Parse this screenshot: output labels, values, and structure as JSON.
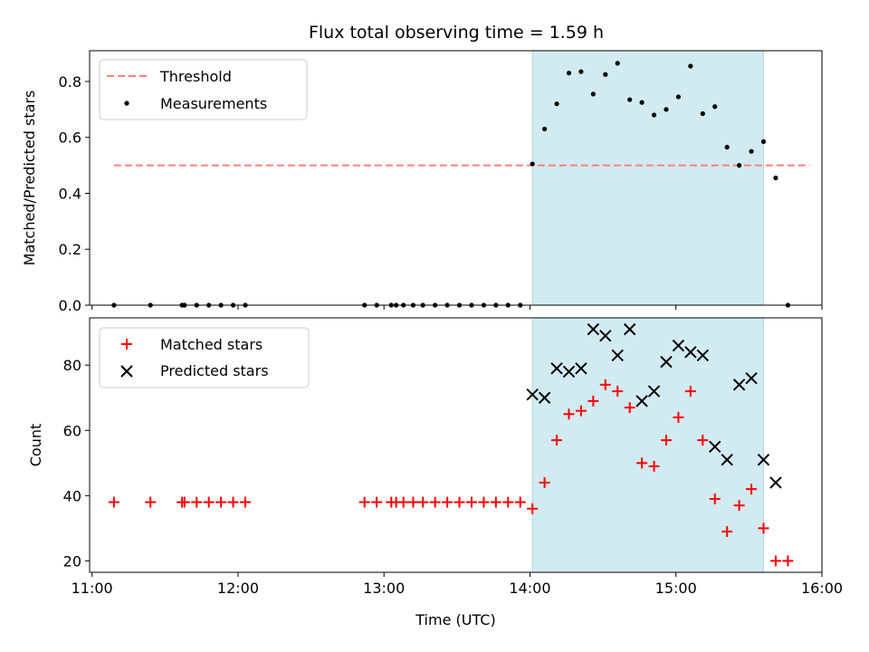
{
  "chart_data": [
    {
      "id": "ratio",
      "type": "scatter",
      "title": "Flux total observing time = 1.59 h",
      "xlabel": "",
      "ylabel": "Matched/Predicted stars",
      "xlim": [
        "10:59",
        "16:00"
      ],
      "ylim": [
        0,
        0.91
      ],
      "yticks": [
        "0.0",
        "0.2",
        "0.4",
        "0.6",
        "0.8"
      ],
      "ytick_values": [
        0,
        0.2,
        0.4,
        0.6,
        0.8
      ],
      "shaded_region": [
        "14:01",
        "15:36"
      ],
      "shaded_color": "#add8e6",
      "legend_position": "upper-left",
      "threshold": {
        "name": "Threshold",
        "value": 0.5,
        "x": [
          "11:09",
          "15:55"
        ],
        "color": "#ff7f7f"
      },
      "series": [
        {
          "name": "Measurements",
          "marker": "dot",
          "color": "#000000",
          "points": [
            [
              "11:09",
              0
            ],
            [
              "11:24",
              0
            ],
            [
              "11:37",
              0
            ],
            [
              "11:38",
              0
            ],
            [
              "11:43",
              0
            ],
            [
              "11:48",
              0
            ],
            [
              "11:53",
              0
            ],
            [
              "11:58",
              0
            ],
            [
              "12:03",
              0
            ],
            [
              "12:52",
              0
            ],
            [
              "12:57",
              0
            ],
            [
              "13:03",
              0
            ],
            [
              "13:05",
              0
            ],
            [
              "13:08",
              0
            ],
            [
              "13:12",
              0
            ],
            [
              "13:16",
              0
            ],
            [
              "13:21",
              0
            ],
            [
              "13:26",
              0
            ],
            [
              "13:31",
              0
            ],
            [
              "13:36",
              0
            ],
            [
              "13:41",
              0
            ],
            [
              "13:46",
              0
            ],
            [
              "13:51",
              0
            ],
            [
              "13:56",
              0
            ],
            [
              "14:01",
              0.505
            ],
            [
              "14:06",
              0.63
            ],
            [
              "14:11",
              0.72
            ],
            [
              "14:16",
              0.83
            ],
            [
              "14:21",
              0.835
            ],
            [
              "14:26",
              0.755
            ],
            [
              "14:31",
              0.825
            ],
            [
              "14:36",
              0.865
            ],
            [
              "14:41",
              0.735
            ],
            [
              "14:46",
              0.725
            ],
            [
              "14:51",
              0.68
            ],
            [
              "14:56",
              0.7
            ],
            [
              "15:01",
              0.745
            ],
            [
              "15:06",
              0.855
            ],
            [
              "15:11",
              0.685
            ],
            [
              "15:16",
              0.71
            ],
            [
              "15:21",
              0.565
            ],
            [
              "15:26",
              0.5
            ],
            [
              "15:31",
              0.55
            ],
            [
              "15:36",
              0.585
            ],
            [
              "15:41",
              0.455
            ],
            [
              "15:46",
              0
            ]
          ]
        }
      ]
    },
    {
      "id": "counts",
      "type": "scatter",
      "title": "",
      "xlabel": "Time (UTC)",
      "ylabel": "Count",
      "xlim": [
        "10:59",
        "16:00"
      ],
      "ylim": [
        16.5,
        94.5
      ],
      "xticks": [
        "11:00",
        "12:00",
        "13:00",
        "14:00",
        "15:00",
        "16:00"
      ],
      "yticks": [
        "20",
        "40",
        "60",
        "80"
      ],
      "ytick_values": [
        20,
        40,
        60,
        80
      ],
      "shaded_region": [
        "14:01",
        "15:36"
      ],
      "shaded_color": "#add8e6",
      "legend_position": "upper-left",
      "series": [
        {
          "name": "Matched stars",
          "marker": "plus",
          "color": "#ff0000",
          "points": [
            [
              "11:09",
              38
            ],
            [
              "11:24",
              38
            ],
            [
              "11:37",
              38
            ],
            [
              "11:38",
              38
            ],
            [
              "11:43",
              38
            ],
            [
              "11:48",
              38
            ],
            [
              "11:53",
              38
            ],
            [
              "11:58",
              38
            ],
            [
              "12:03",
              38
            ],
            [
              "12:52",
              38
            ],
            [
              "12:57",
              38
            ],
            [
              "13:03",
              38
            ],
            [
              "13:05",
              38
            ],
            [
              "13:08",
              38
            ],
            [
              "13:12",
              38
            ],
            [
              "13:16",
              38
            ],
            [
              "13:21",
              38
            ],
            [
              "13:26",
              38
            ],
            [
              "13:31",
              38
            ],
            [
              "13:36",
              38
            ],
            [
              "13:41",
              38
            ],
            [
              "13:46",
              38
            ],
            [
              "13:51",
              38
            ],
            [
              "13:56",
              38
            ],
            [
              "14:01",
              36
            ],
            [
              "14:06",
              44
            ],
            [
              "14:11",
              57
            ],
            [
              "14:16",
              65
            ],
            [
              "14:21",
              66
            ],
            [
              "14:26",
              69
            ],
            [
              "14:31",
              74
            ],
            [
              "14:36",
              72
            ],
            [
              "14:41",
              67
            ],
            [
              "14:46",
              50
            ],
            [
              "14:51",
              49
            ],
            [
              "14:56",
              57
            ],
            [
              "15:01",
              64
            ],
            [
              "15:06",
              72
            ],
            [
              "15:11",
              57
            ],
            [
              "15:16",
              39
            ],
            [
              "15:21",
              29
            ],
            [
              "15:26",
              37
            ],
            [
              "15:31",
              42
            ],
            [
              "15:36",
              30
            ],
            [
              "15:41",
              20
            ],
            [
              "15:46",
              20
            ]
          ]
        },
        {
          "name": "Predicted stars",
          "marker": "x",
          "color": "#000000",
          "points": [
            [
              "14:01",
              71
            ],
            [
              "14:06",
              70
            ],
            [
              "14:11",
              79
            ],
            [
              "14:16",
              78
            ],
            [
              "14:21",
              79
            ],
            [
              "14:26",
              91
            ],
            [
              "14:31",
              89
            ],
            [
              "14:36",
              83
            ],
            [
              "14:41",
              91
            ],
            [
              "14:46",
              69
            ],
            [
              "14:51",
              72
            ],
            [
              "14:56",
              81
            ],
            [
              "15:01",
              86
            ],
            [
              "15:06",
              84
            ],
            [
              "15:11",
              83
            ],
            [
              "15:16",
              55
            ],
            [
              "15:21",
              51
            ],
            [
              "15:26",
              74
            ],
            [
              "15:31",
              76
            ],
            [
              "15:36",
              51
            ],
            [
              "15:41",
              44
            ]
          ]
        }
      ]
    }
  ]
}
